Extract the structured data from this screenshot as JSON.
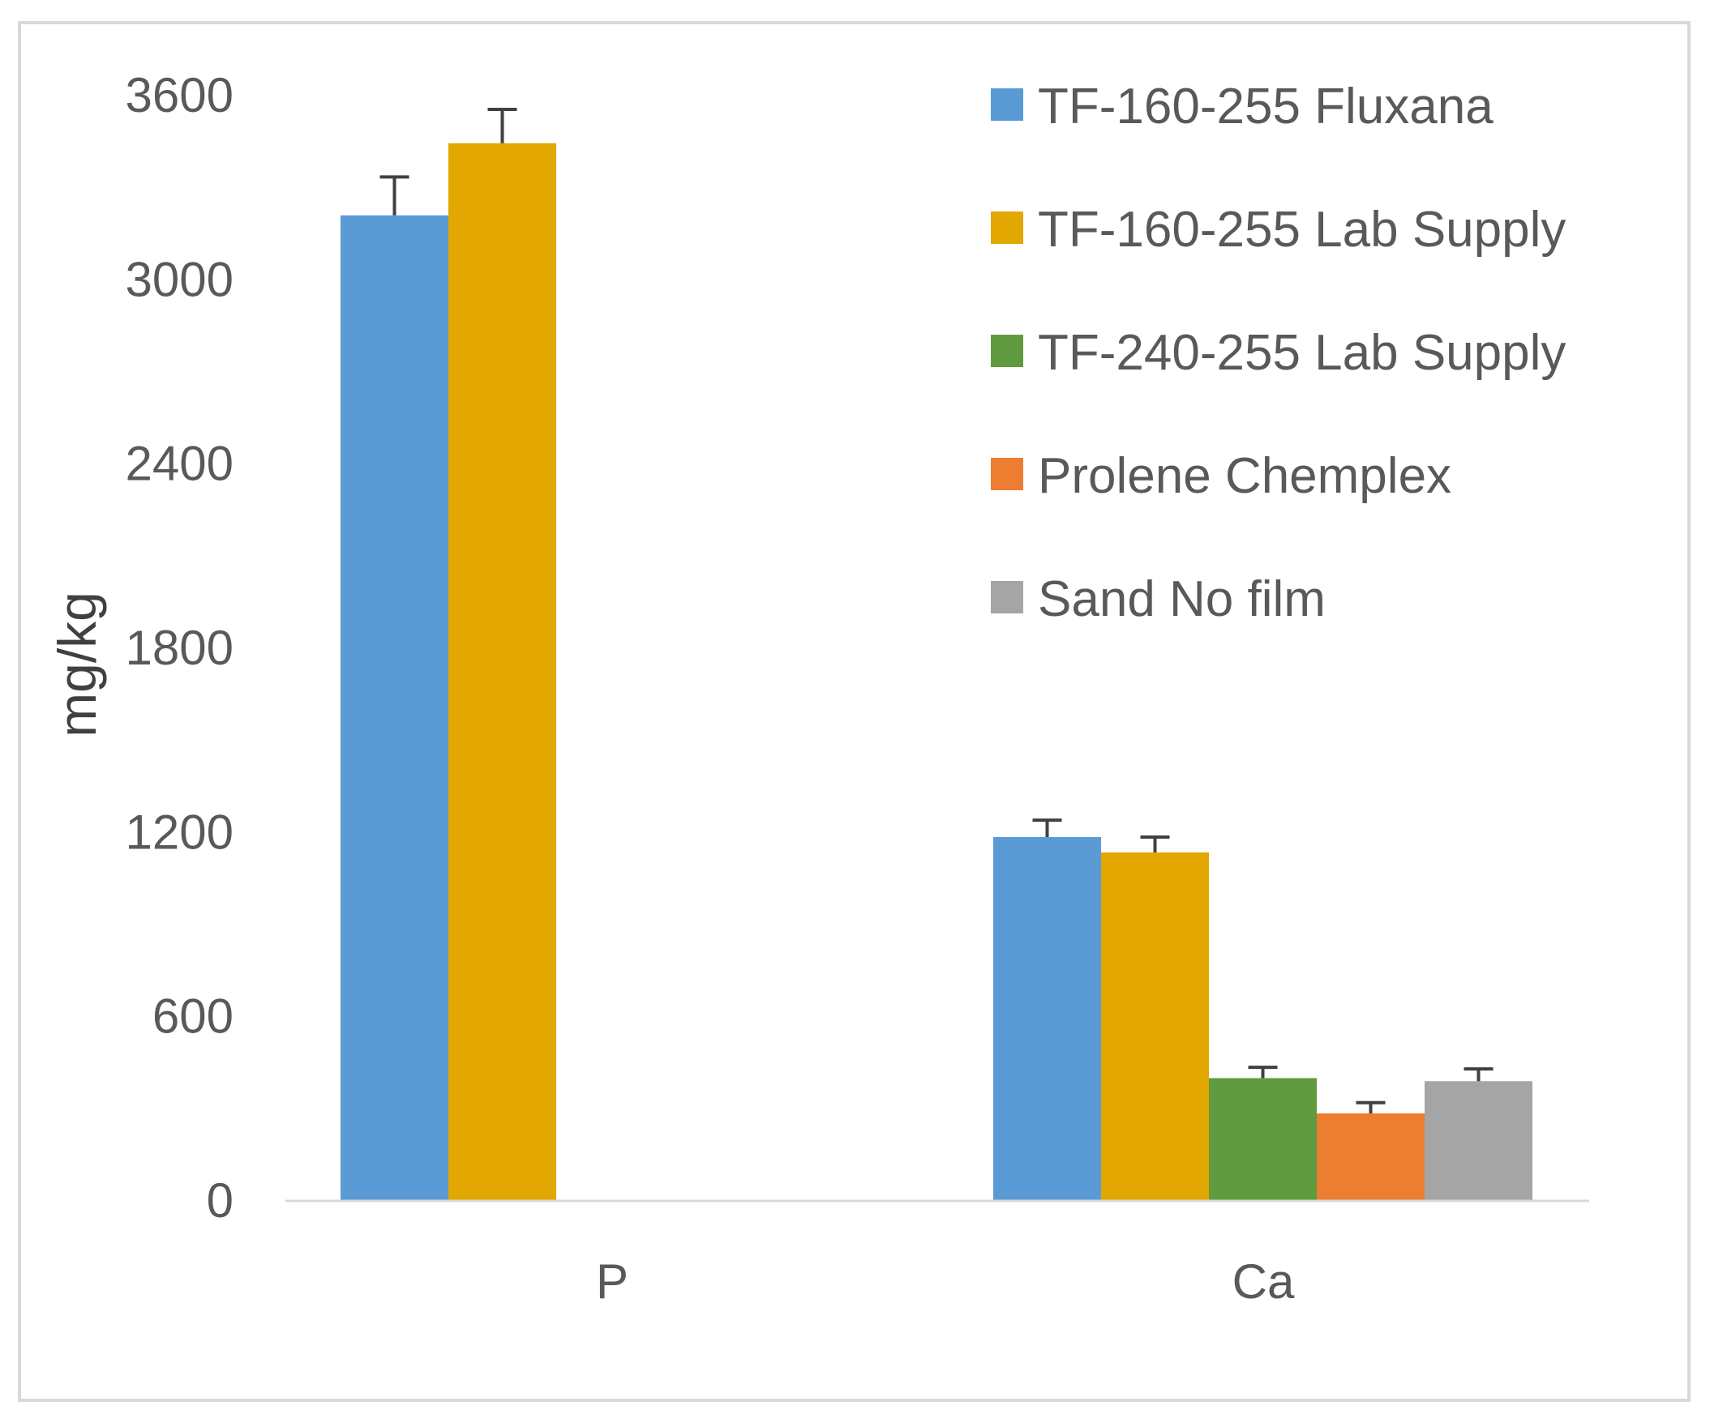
{
  "chart_data": {
    "type": "bar",
    "title": "",
    "xlabel": "",
    "ylabel": "mg/kg",
    "ylim": [
      0,
      3600
    ],
    "yticks": [
      0,
      600,
      1200,
      1800,
      2400,
      3000,
      3600
    ],
    "grid": false,
    "legend_position": "top-right",
    "categories": [
      "P",
      "Ca"
    ],
    "series": [
      {
        "name": "TF-160-255 Fluxana",
        "color": "#5b9bd5",
        "values": [
          3210,
          1185
        ],
        "errors": [
          125,
          55
        ]
      },
      {
        "name": "TF-160-255 Lab Supply",
        "color": "#e2a700",
        "values": [
          3445,
          1135
        ],
        "errors": [
          110,
          50
        ]
      },
      {
        "name": "TF-240-255 Lab Supply",
        "color": "#619b3f",
        "values": [
          null,
          400
        ],
        "errors": [
          null,
          35
        ]
      },
      {
        "name": "Prolene Chemplex",
        "color": "#ed7d31",
        "values": [
          null,
          285
        ],
        "errors": [
          null,
          35
        ]
      },
      {
        "name": "Sand No film",
        "color": "#a5a5a5",
        "values": [
          null,
          390
        ],
        "errors": [
          null,
          40
        ]
      }
    ]
  }
}
